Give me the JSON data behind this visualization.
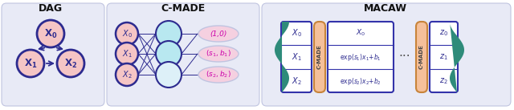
{
  "bg_color": "#e8eaf6",
  "node_fill": "#f5c5c5",
  "node_edge": "#2d2b8f",
  "hidden_fill": "#b8e8f0",
  "hidden_edge": "#2d2b8f",
  "arrow_color": "#2d2b8f",
  "magenta": "#cc00aa",
  "teal": "#2e8b7a",
  "teal_dark": "#1a5c6e",
  "orange_fill": "#f5c09a",
  "orange_edge": "#c8843a",
  "box_fill": "#ffffff",
  "box_edge": "#3333aa",
  "title_color": "#111111",
  "section_edge": "#c0c4e0",
  "dag_title": "DAG",
  "cmade_title": "C-MADE",
  "macaw_title": "MACAW"
}
